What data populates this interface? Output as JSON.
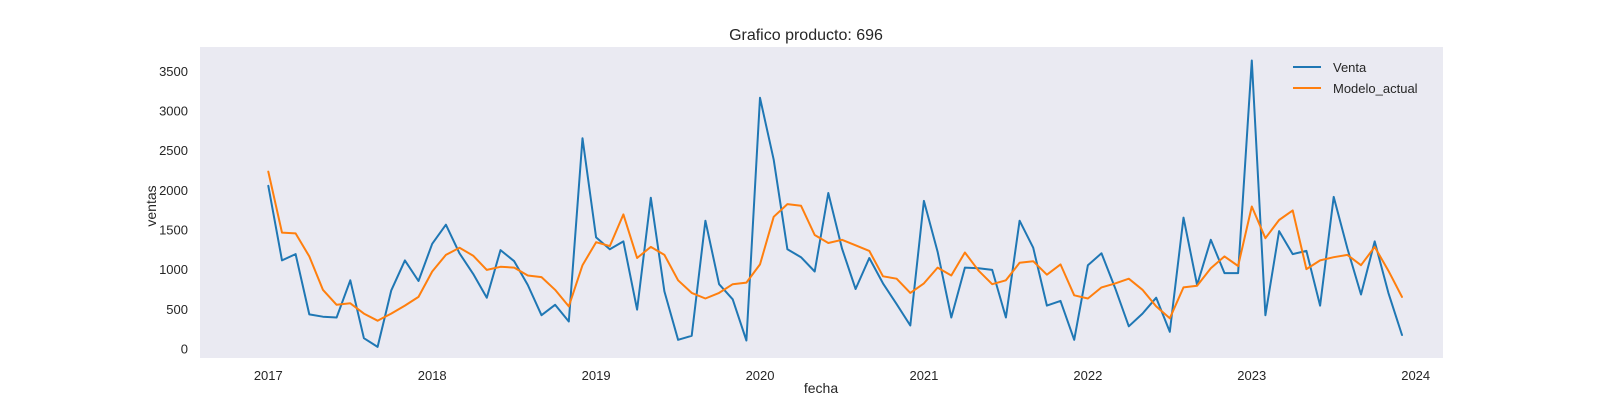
{
  "chart_data": {
    "type": "line",
    "title": "Grafico producto: 696",
    "xlabel": "fecha",
    "ylabel": "ventas",
    "grid": false,
    "legend_position": "top-right",
    "colors": {
      "background": "#eaeaf2",
      "Venta": "#1f77b4",
      "Modelo_actual": "#ff7f0e",
      "text": "#262626"
    },
    "xlim": [
      "2016-08-01",
      "2024-03-01"
    ],
    "ylim": [
      -120,
      3800
    ],
    "x_ticks": [
      "2017",
      "2018",
      "2019",
      "2020",
      "2021",
      "2022",
      "2023",
      "2024"
    ],
    "y_ticks": [
      0,
      500,
      1000,
      1500,
      2000,
      2500,
      3000,
      3500
    ],
    "x": [
      "2017-01",
      "2017-02",
      "2017-03",
      "2017-04",
      "2017-05",
      "2017-06",
      "2017-07",
      "2017-08",
      "2017-09",
      "2017-10",
      "2017-11",
      "2017-12",
      "2018-01",
      "2018-02",
      "2018-03",
      "2018-04",
      "2018-05",
      "2018-06",
      "2018-07",
      "2018-08",
      "2018-09",
      "2018-10",
      "2018-11",
      "2018-12",
      "2019-01",
      "2019-02",
      "2019-03",
      "2019-04",
      "2019-05",
      "2019-06",
      "2019-07",
      "2019-08",
      "2019-09",
      "2019-10",
      "2019-11",
      "2019-12",
      "2020-01",
      "2020-02",
      "2020-03",
      "2020-04",
      "2020-05",
      "2020-06",
      "2020-07",
      "2020-08",
      "2020-09",
      "2020-10",
      "2020-11",
      "2020-12",
      "2021-01",
      "2021-02",
      "2021-03",
      "2021-04",
      "2021-05",
      "2021-06",
      "2021-07",
      "2021-08",
      "2021-09",
      "2021-10",
      "2021-11",
      "2021-12",
      "2022-01",
      "2022-02",
      "2022-03",
      "2022-04",
      "2022-05",
      "2022-06",
      "2022-07",
      "2022-08",
      "2022-09",
      "2022-10",
      "2022-11",
      "2022-12",
      "2023-01",
      "2023-02",
      "2023-03",
      "2023-04",
      "2023-05",
      "2023-06",
      "2023-07",
      "2023-08",
      "2023-09",
      "2023-10",
      "2023-11",
      "2023-12"
    ],
    "series": [
      {
        "name": "Venta",
        "values": [
          2050,
          1110,
          1190,
          430,
          400,
          390,
          860,
          130,
          20,
          730,
          1110,
          850,
          1320,
          1560,
          1200,
          940,
          640,
          1240,
          1100,
          800,
          420,
          550,
          340,
          2650,
          1400,
          1250,
          1350,
          490,
          1900,
          720,
          110,
          160,
          1610,
          810,
          620,
          100,
          3160,
          2380,
          1250,
          1150,
          970,
          1960,
          1260,
          750,
          1140,
          820,
          560,
          290,
          1860,
          1220,
          390,
          1020,
          1010,
          990,
          390,
          1610,
          1270,
          540,
          600,
          110,
          1050,
          1200,
          760,
          280,
          440,
          640,
          210,
          1650,
          800,
          1370,
          950,
          950,
          3630,
          420,
          1480,
          1190,
          1230,
          540,
          1910,
          1260,
          680,
          1350,
          700,
          170
        ]
      },
      {
        "name": "Modelo_actual",
        "values": [
          2230,
          1460,
          1450,
          1160,
          740,
          550,
          570,
          440,
          350,
          440,
          540,
          650,
          970,
          1180,
          1270,
          1170,
          990,
          1030,
          1020,
          920,
          900,
          740,
          530,
          1050,
          1340,
          1290,
          1690,
          1140,
          1280,
          1180,
          860,
          700,
          630,
          700,
          810,
          830,
          1060,
          1660,
          1820,
          1800,
          1430,
          1330,
          1370,
          1300,
          1230,
          910,
          880,
          700,
          820,
          1020,
          920,
          1210,
          980,
          810,
          860,
          1080,
          1100,
          930,
          1060,
          670,
          630,
          770,
          820,
          880,
          740,
          530,
          380,
          770,
          790,
          1010,
          1160,
          1040,
          1790,
          1390,
          1620,
          1740,
          1000,
          1110,
          1150,
          1180,
          1050,
          1280,
          980,
          650
        ]
      }
    ]
  }
}
